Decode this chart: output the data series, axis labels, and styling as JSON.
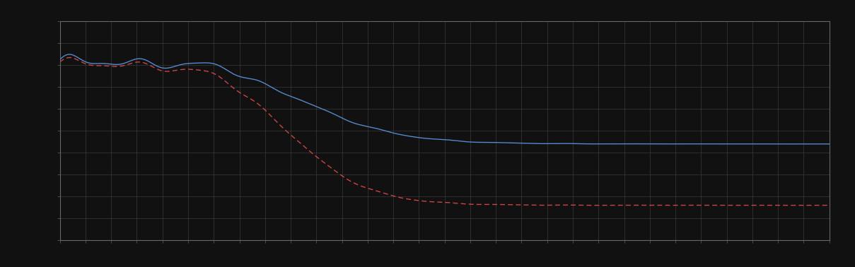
{
  "background_color": "#111111",
  "plot_bg_color": "#111111",
  "grid_color": "#444444",
  "blue_line_color": "#5588cc",
  "red_line_color": "#cc4444",
  "xlim": [
    0,
    100
  ],
  "ylim": [
    0,
    10
  ],
  "figsize": [
    12.09,
    3.78
  ],
  "dpi": 100,
  "spine_color": "#666666",
  "tick_color": "#666666",
  "major_x_ticks": 10,
  "major_y_ticks": 10,
  "n_grid_x": 30,
  "n_grid_y": 10
}
